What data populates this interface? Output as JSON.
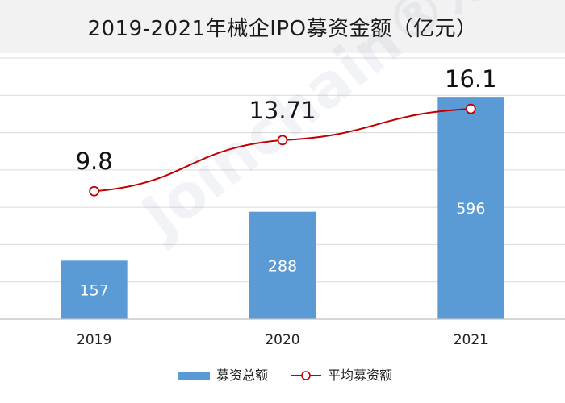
{
  "chart_data": {
    "type": "bar",
    "title": "2019-2021年械企IPO募资金额（亿元）",
    "categories": [
      "2019",
      "2020",
      "2021"
    ],
    "series": [
      {
        "name": "募资总额",
        "type": "bar",
        "values": [
          157,
          288,
          596
        ],
        "color": "#5b9bd5"
      },
      {
        "name": "平均募资额",
        "type": "line",
        "values": [
          9.8,
          13.71,
          16.1
        ],
        "color": "#c00000"
      }
    ],
    "bar_value_labels": [
      "157",
      "288",
      "596"
    ],
    "line_value_labels": [
      "9.8",
      "13.71",
      "16.1"
    ],
    "bar_ylim": [
      0,
      700
    ],
    "line_ylim": [
      0,
      20
    ],
    "grid": true,
    "legend": "bottom"
  },
  "watermark": "Joinchain®众成",
  "colors": {
    "title_bg": "#f2f2f2",
    "gridline": "#d9d9d9",
    "axis": "#bfbfbf"
  }
}
